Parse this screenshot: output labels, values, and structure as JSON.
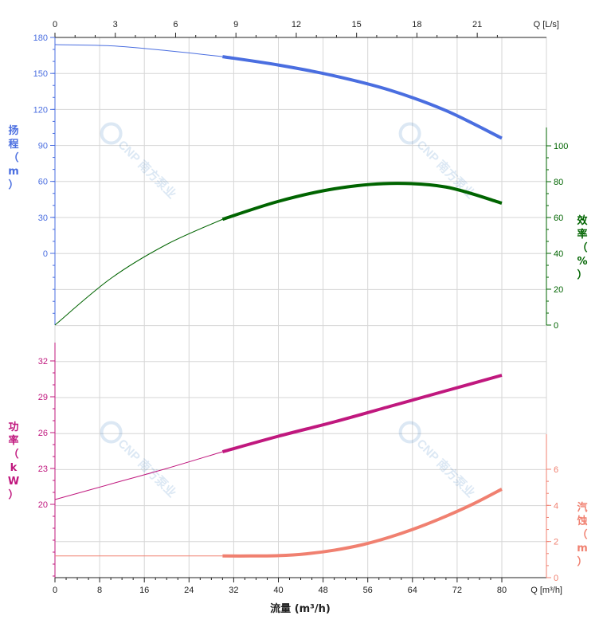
{
  "chart_data": {
    "type": "line",
    "x_axis_bottom": {
      "label": "Q [m³/h]",
      "title": "流量 (m³/h)",
      "range": [
        0,
        80
      ],
      "ticks": [
        "0",
        "8",
        "16",
        "24",
        "32",
        "40",
        "48",
        "56",
        "64",
        "72",
        "80"
      ]
    },
    "x_axis_top": {
      "label": "Q [L/s]",
      "ticks": [
        "0",
        "3",
        "6",
        "9",
        "12",
        "15",
        "18",
        "21"
      ]
    },
    "head": {
      "name": "扬程 (m)",
      "name_chars": [
        "扬",
        "程",
        "（",
        "m",
        "）"
      ],
      "color": "#4a6ee0",
      "ylim": [
        0,
        180
      ],
      "ticks": [
        "0",
        "30",
        "60",
        "90",
        "120",
        "150",
        "180"
      ],
      "x": [
        0,
        10,
        20,
        30,
        40,
        50,
        60,
        70,
        80
      ],
      "y": [
        174,
        173,
        169,
        164,
        157,
        148,
        136,
        119,
        96
      ],
      "operating_range": [
        30,
        80
      ]
    },
    "efficiency": {
      "name": "效率 (%)",
      "name_chars": [
        "效",
        "率",
        "（",
        "%",
        "）"
      ],
      "color": "#006400",
      "ylim": [
        0,
        100
      ],
      "ticks": [
        "0",
        "20",
        "40",
        "60",
        "80",
        "100"
      ],
      "x": [
        0,
        10,
        20,
        30,
        40,
        50,
        60,
        70,
        80
      ],
      "y": [
        0,
        26,
        45,
        59,
        69,
        76,
        79,
        77,
        68
      ],
      "operating_range": [
        30,
        80
      ]
    },
    "power": {
      "name": "功率 (kW)",
      "name_chars": [
        "功",
        "率",
        "（",
        "k",
        "W",
        "）"
      ],
      "color": "#c0187e",
      "ylim": [
        20,
        32
      ],
      "ticks": [
        "20",
        "23",
        "26",
        "29",
        "32"
      ],
      "x": [
        0,
        10,
        20,
        30,
        40,
        50,
        60,
        70,
        80
      ],
      "y": [
        20.4,
        21.7,
        23.0,
        24.4,
        25.7,
        26.9,
        28.2,
        29.5,
        30.8
      ],
      "operating_range": [
        30,
        80
      ]
    },
    "npsh": {
      "name": "汽蚀 (m)",
      "name_chars": [
        "汽",
        "蚀",
        "（",
        "m",
        "）"
      ],
      "color": "#f08070",
      "ylim": [
        0,
        6
      ],
      "ticks": [
        "0",
        "2",
        "4",
        "6"
      ],
      "x": [
        0,
        10,
        20,
        30,
        35,
        40,
        45,
        50,
        55,
        60,
        65,
        70,
        75,
        80
      ],
      "y": [
        1.2,
        1.2,
        1.2,
        1.2,
        1.2,
        1.22,
        1.32,
        1.52,
        1.82,
        2.25,
        2.78,
        3.4,
        4.1,
        4.9
      ],
      "operating_range": [
        30,
        80
      ]
    },
    "grid": true
  }
}
